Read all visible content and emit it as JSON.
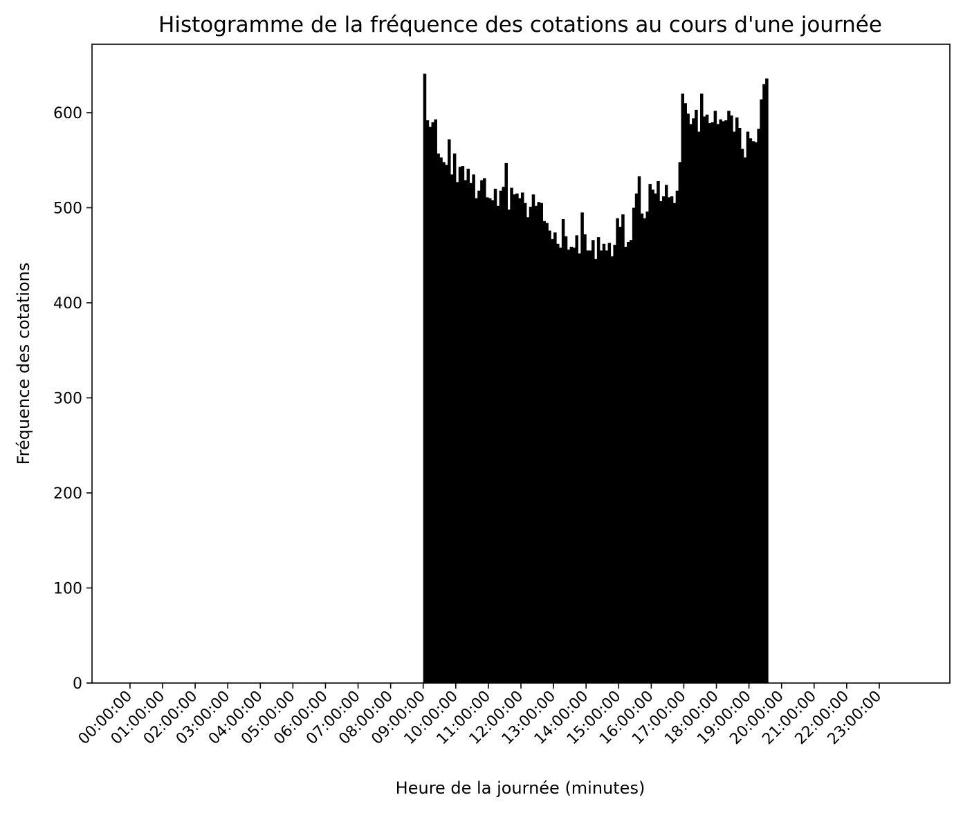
{
  "chart_data": {
    "type": "bar",
    "title": "Histogramme de la fréquence des cotations au cours d'une journée",
    "xlabel": "Heure de la journée (minutes)",
    "ylabel": "Fréquence des cotations",
    "x_unit": "minutes",
    "xlim": [
      -70,
      1510
    ],
    "ylim": [
      0,
      672
    ],
    "grid": false,
    "legend": "none",
    "bar_color": "#000000",
    "x_ticks": [
      {
        "value": 0,
        "label": "00:00:00"
      },
      {
        "value": 60,
        "label": "01:00:00"
      },
      {
        "value": 120,
        "label": "02:00:00"
      },
      {
        "value": 180,
        "label": "03:00:00"
      },
      {
        "value": 240,
        "label": "04:00:00"
      },
      {
        "value": 300,
        "label": "05:00:00"
      },
      {
        "value": 360,
        "label": "06:00:00"
      },
      {
        "value": 420,
        "label": "07:00:00"
      },
      {
        "value": 480,
        "label": "08:00:00"
      },
      {
        "value": 540,
        "label": "09:00:00"
      },
      {
        "value": 600,
        "label": "10:00:00"
      },
      {
        "value": 660,
        "label": "11:00:00"
      },
      {
        "value": 720,
        "label": "12:00:00"
      },
      {
        "value": 780,
        "label": "13:00:00"
      },
      {
        "value": 840,
        "label": "14:00:00"
      },
      {
        "value": 900,
        "label": "15:00:00"
      },
      {
        "value": 960,
        "label": "16:00:00"
      },
      {
        "value": 1020,
        "label": "17:00:00"
      },
      {
        "value": 1080,
        "label": "18:00:00"
      },
      {
        "value": 1140,
        "label": "19:00:00"
      },
      {
        "value": 1200,
        "label": "20:00:00"
      },
      {
        "value": 1260,
        "label": "21:00:00"
      },
      {
        "value": 1320,
        "label": "22:00:00"
      },
      {
        "value": 1380,
        "label": "23:00:00"
      }
    ],
    "y_ticks": [
      {
        "value": 0,
        "label": "0"
      },
      {
        "value": 100,
        "label": "100"
      },
      {
        "value": 200,
        "label": "200"
      },
      {
        "value": 300,
        "label": "300"
      },
      {
        "value": 400,
        "label": "400"
      },
      {
        "value": 500,
        "label": "500"
      },
      {
        "value": 600,
        "label": "600"
      }
    ],
    "bin_width_minutes": 5,
    "bins_start_minute": 540,
    "values": [
      641,
      592,
      585,
      590,
      593,
      557,
      553,
      548,
      545,
      572,
      535,
      557,
      527,
      543,
      544,
      529,
      541,
      526,
      535,
      510,
      518,
      529,
      531,
      511,
      510,
      508,
      520,
      502,
      518,
      522,
      547,
      498,
      521,
      514,
      515,
      510,
      516,
      505,
      490,
      501,
      514,
      502,
      506,
      505,
      486,
      484,
      476,
      467,
      474,
      462,
      458,
      488,
      470,
      456,
      459,
      458,
      471,
      452,
      495,
      472,
      455,
      455,
      466,
      446,
      469,
      455,
      462,
      455,
      463,
      449,
      461,
      489,
      480,
      493,
      459,
      464,
      466,
      500,
      515,
      533,
      494,
      489,
      496,
      525,
      519,
      515,
      528,
      507,
      512,
      524,
      511,
      512,
      505,
      518,
      548,
      620,
      610,
      599,
      588,
      594,
      603,
      580,
      620,
      596,
      598,
      589,
      590,
      602,
      588,
      593,
      591,
      592,
      602,
      597,
      580,
      595,
      584,
      562,
      553,
      580,
      573,
      570,
      569,
      583,
      614,
      630,
      636
    ]
  }
}
